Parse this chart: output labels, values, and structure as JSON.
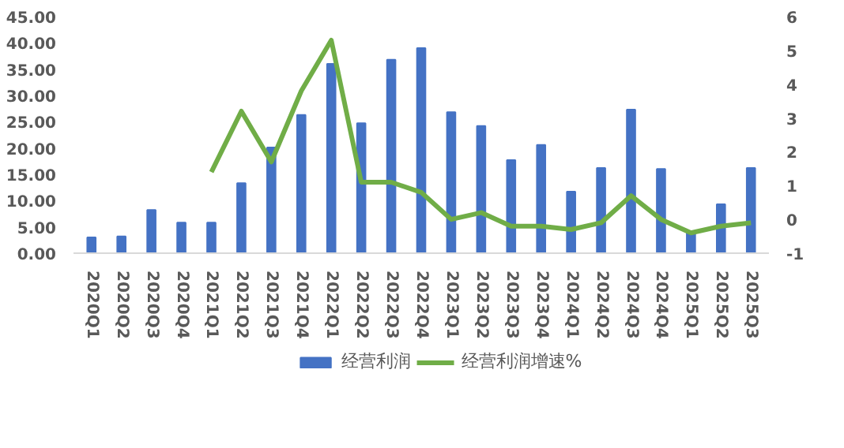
{
  "chart_data": {
    "type": "bar",
    "categories": [
      "2020Q1",
      "2020Q2",
      "2020Q3",
      "2020Q4",
      "2021Q1",
      "2021Q2",
      "2021Q3",
      "2021Q4",
      "2022Q1",
      "2022Q2",
      "2022Q3",
      "2022Q4",
      "2023Q1",
      "2023Q2",
      "2023Q3",
      "2023Q4",
      "2024Q1",
      "2024Q2",
      "2024Q3",
      "2024Q4",
      "2025Q1",
      "2025Q2",
      "2025Q3"
    ],
    "series": [
      {
        "name": "经营利润",
        "color": "#4472c4",
        "values": [
          3.0,
          3.2,
          8.2,
          5.8,
          5.8,
          13.3,
          20.1,
          26.3,
          36.0,
          24.7,
          36.8,
          39.0,
          26.8,
          24.2,
          17.7,
          20.6,
          11.7,
          16.2,
          27.3,
          16.0,
          4.0,
          9.3,
          16.2
        ]
      },
      {
        "name": "经营利润增速%",
        "type": "line",
        "axis": "y2",
        "color": "#70ad47",
        "values": [
          null,
          null,
          null,
          null,
          1.4,
          3.2,
          1.7,
          3.8,
          5.3,
          1.1,
          1.1,
          0.8,
          0.0,
          0.2,
          -0.2,
          -0.2,
          -0.3,
          -0.1,
          0.7,
          0.0,
          -0.4,
          -0.2,
          -0.1
        ]
      }
    ],
    "ylim": [
      0,
      45
    ],
    "yticks": [
      {
        "value": 0,
        "label": "0.00"
      },
      {
        "value": 5,
        "label": "5.00"
      },
      {
        "value": 10,
        "label": "10.00"
      },
      {
        "value": 15,
        "label": "15.00"
      },
      {
        "value": 20,
        "label": "20.00"
      },
      {
        "value": 25,
        "label": "25.00"
      },
      {
        "value": 30,
        "label": "30.00"
      },
      {
        "value": 35,
        "label": "35.00"
      },
      {
        "value": 40,
        "label": "40.00"
      },
      {
        "value": 45,
        "label": "45.00"
      }
    ],
    "y2lim": [
      -1,
      6
    ],
    "y2ticks": [
      -1,
      0,
      1,
      2,
      3,
      4,
      5,
      6
    ],
    "grid": false,
    "legend": "bottom"
  }
}
